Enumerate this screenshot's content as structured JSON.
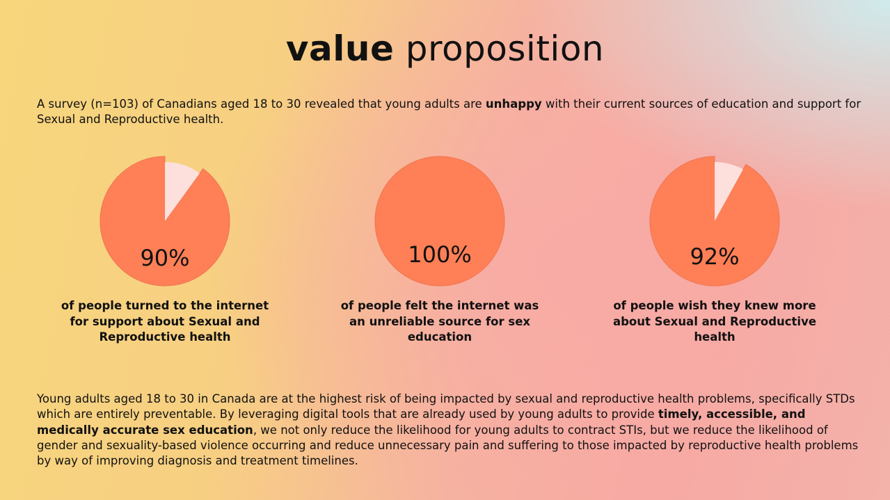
{
  "title": {
    "bold": "value",
    "light": "proposition"
  },
  "intro": {
    "before": "A survey (n=103) of Canadians aged 18 to 30 revealed that young adults are ",
    "emphasis": "unhappy",
    "after": " with their current sources of education and support for Sexual and Reproductive health."
  },
  "colors": {
    "slice": "#ff7f56",
    "remainder": "#fde0dc",
    "stroke": "#f07955"
  },
  "chart_data": [
    {
      "type": "pie",
      "value": 90,
      "label": "90%",
      "caption": "of people turned to the internet for support about Sexual and Reproductive health"
    },
    {
      "type": "pie",
      "value": 100,
      "label": "100%",
      "caption": "of people felt the internet was an unreliable source for sex education"
    },
    {
      "type": "pie",
      "value": 92,
      "label": "92%",
      "caption": "of people wish they knew more about Sexual and Reproductive health"
    }
  ],
  "body": {
    "p1": "Young adults aged 18 to 30 in Canada are at the highest risk of being impacted by sexual and reproductive health problems, specifically STDs which are entirely preventable. By leveraging digital tools that are already used by young adults to provide ",
    "emphasis": "timely, accessible, and medically accurate sex education",
    "p2": ", we not only reduce the likelihood for young adults to contract STIs, but we reduce the likelihood of gender and sexuality-based violence occurring and reduce unnecessary pain and suffering to those impacted by reproductive health problems by way of improving diagnosis and treatment timelines."
  }
}
